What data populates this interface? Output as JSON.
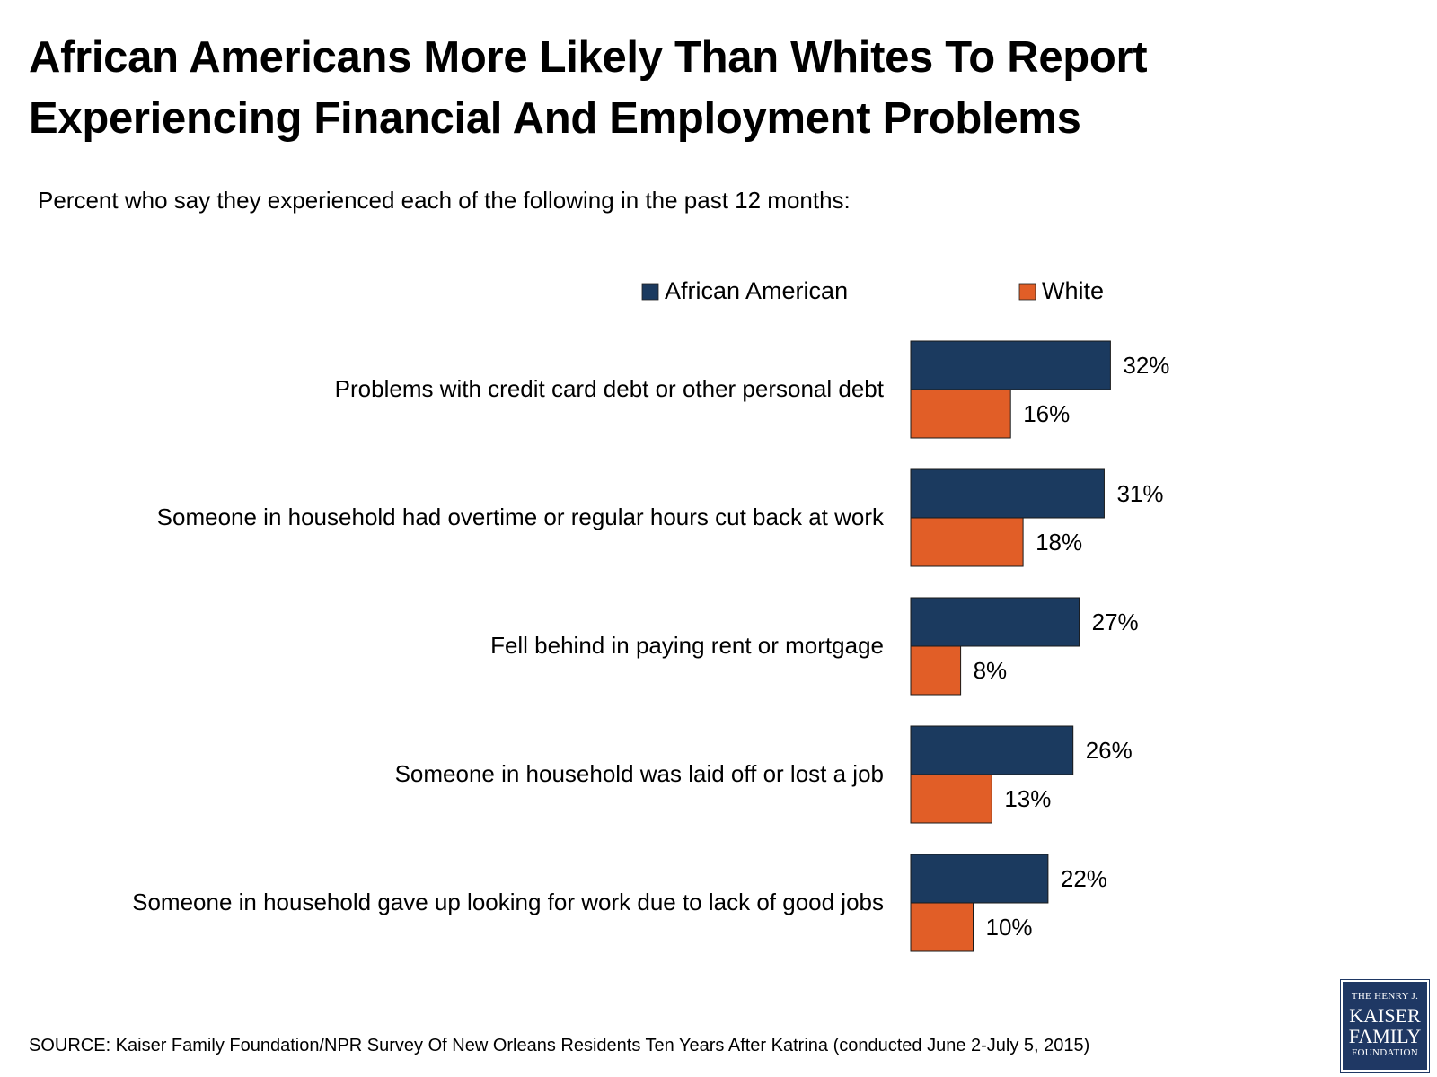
{
  "title": "African Americans More Likely Than Whites To Report Experiencing Financial And Employment Problems",
  "subtitle": "Percent who say they experienced each of the following in the past 12 months:",
  "source": "SOURCE: Kaiser Family Foundation/NPR Survey Of New Orleans Residents Ten Years After Katrina (conducted June 2-July 5, 2015)",
  "logo": {
    "line1": "THE HENRY J.",
    "line2": "KAISER",
    "line3": "FAMILY",
    "line4": "FOUNDATION",
    "color": "#1f3864"
  },
  "chart_data": {
    "type": "bar",
    "orientation": "horizontal",
    "legend_position": "top",
    "grid": false,
    "value_format": "{v}%",
    "categories": [
      "Problems with credit card debt or other personal debt",
      "Someone in household had overtime or regular hours cut back at work",
      "Fell behind in paying rent or mortgage",
      "Someone in household was laid off or lost a job",
      "Someone in household gave up looking for work due to lack of good jobs"
    ],
    "series": [
      {
        "name": "African American",
        "color": "#1b3a5f",
        "values": [
          32,
          31,
          27,
          26,
          22
        ]
      },
      {
        "name": "White",
        "color": "#e15e27",
        "values": [
          16,
          18,
          8,
          13,
          10
        ]
      }
    ]
  }
}
